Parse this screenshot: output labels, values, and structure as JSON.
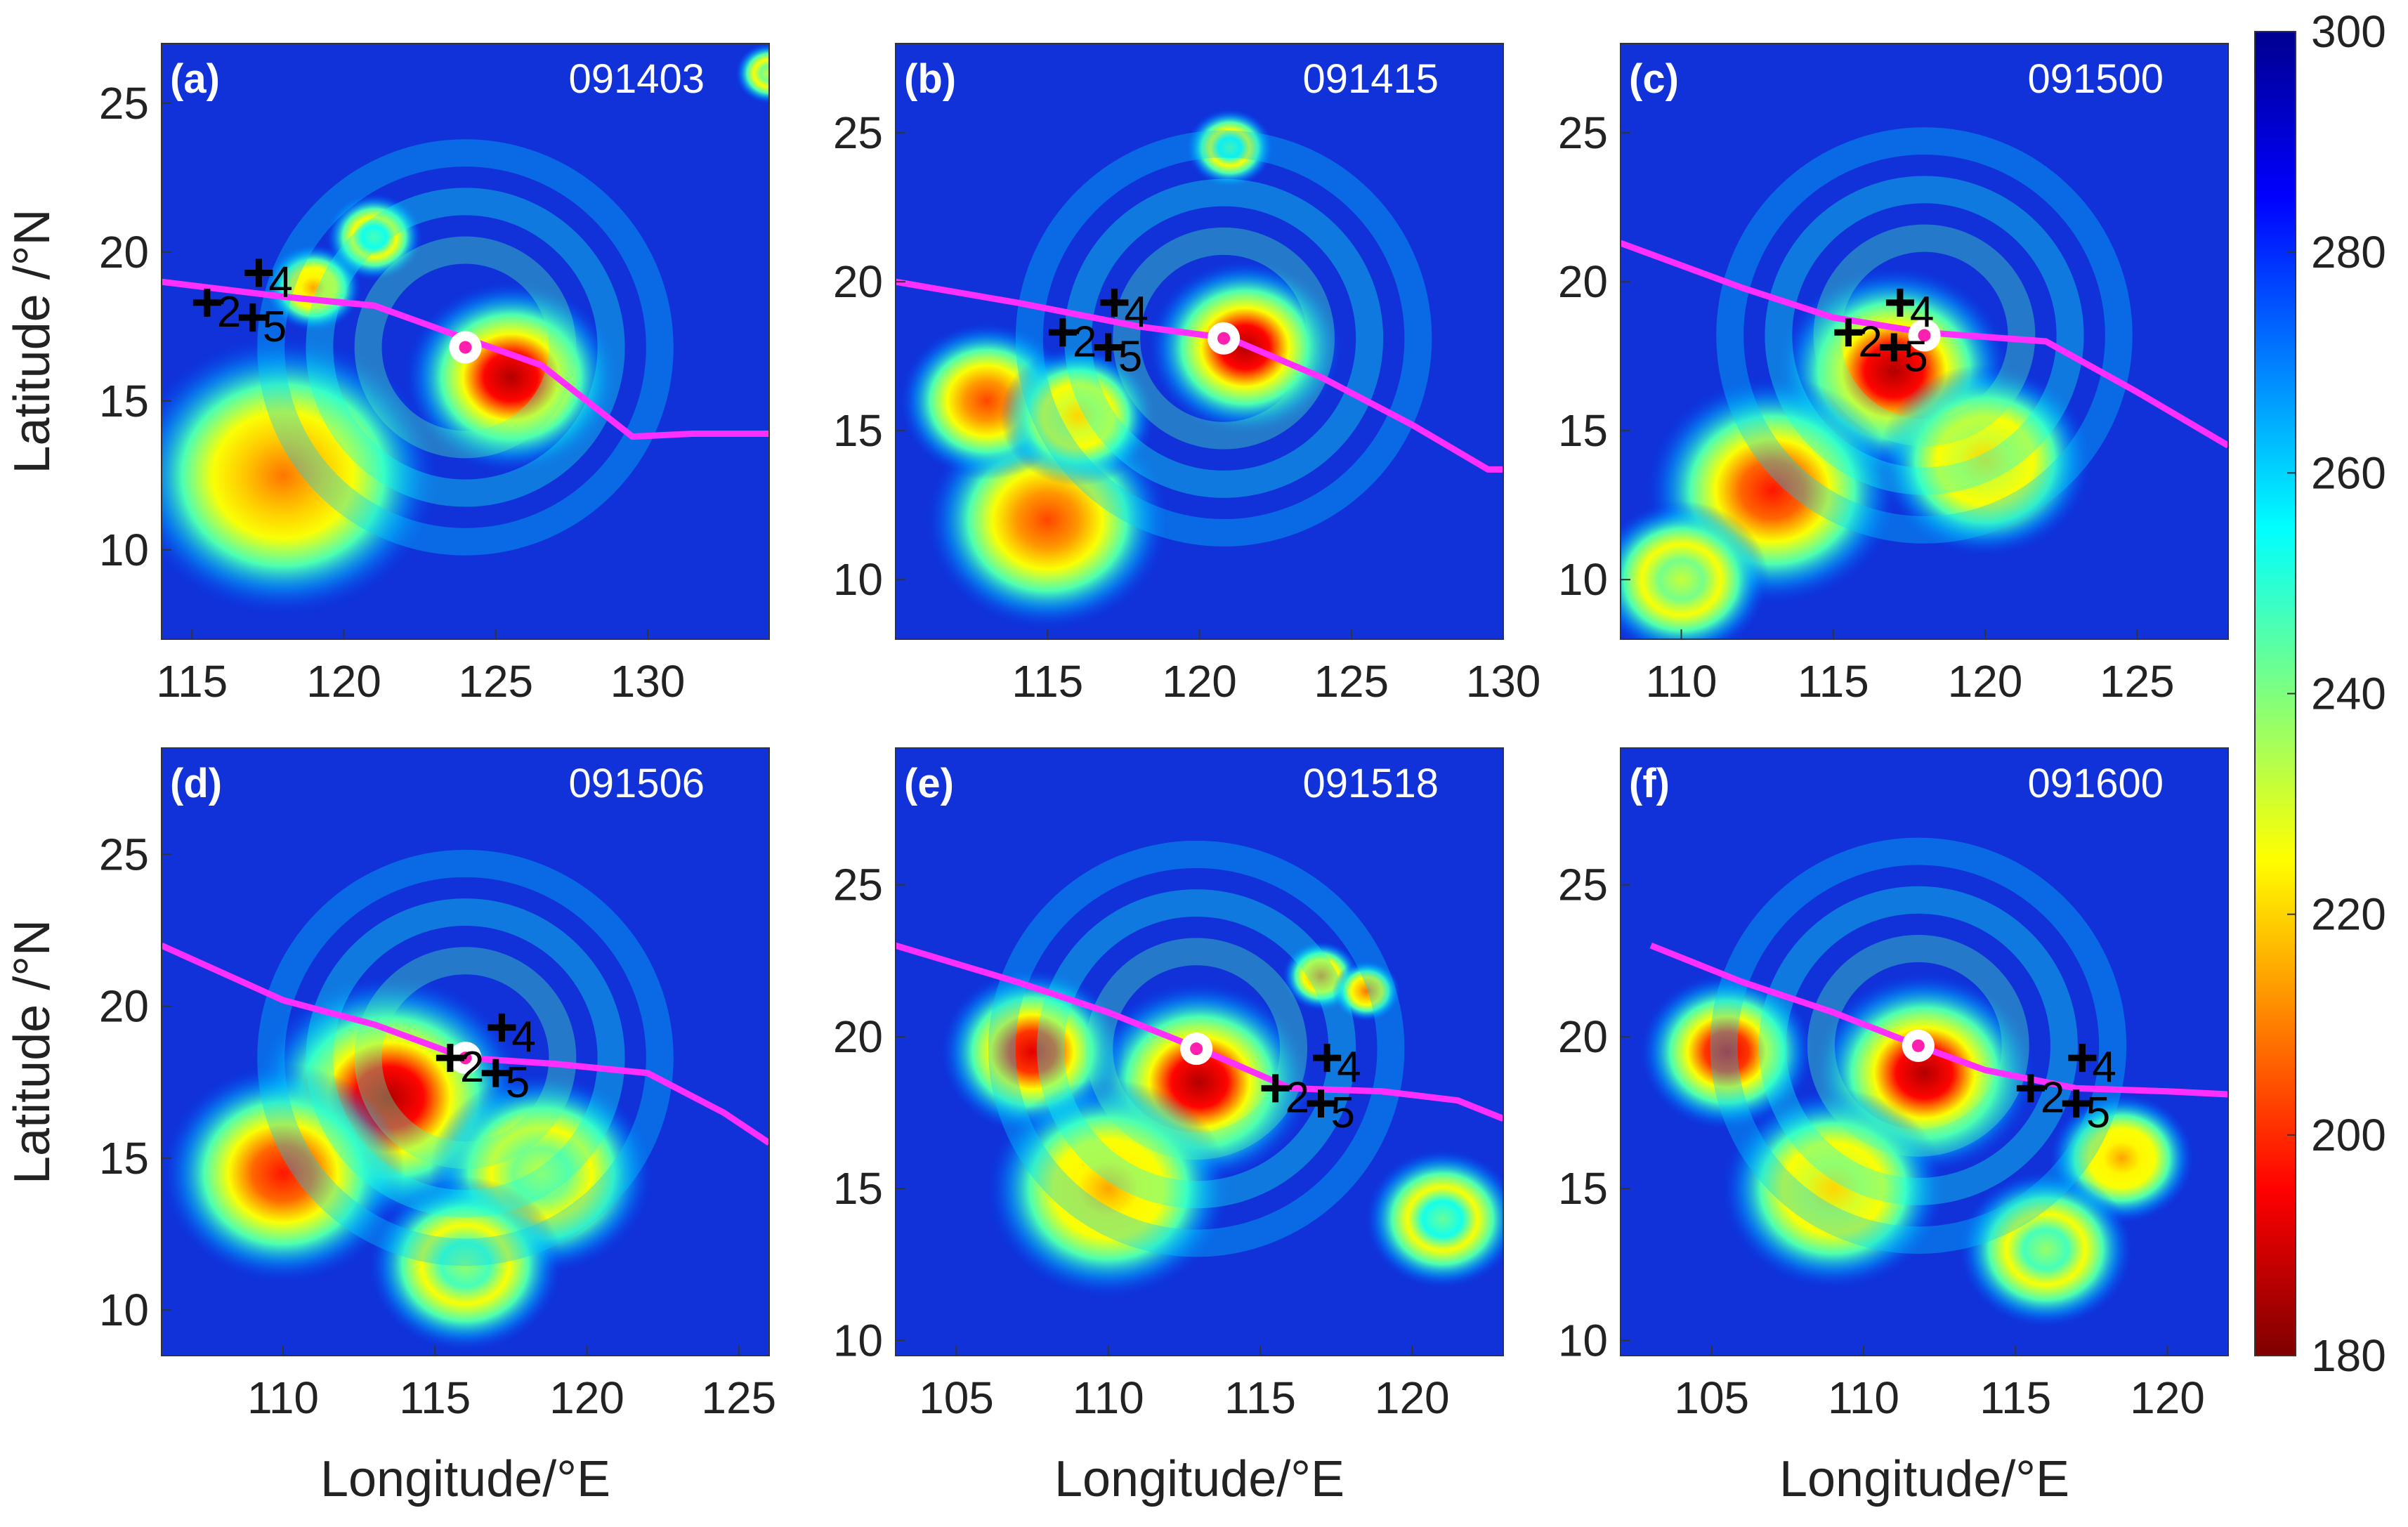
{
  "chart_data": [
    {
      "type": "heatmap",
      "panel_label": "(a)",
      "time_label": "091403",
      "xlabel": "",
      "ylabel": "Latitude /°N",
      "xlim": [
        114,
        134
      ],
      "ylim": [
        7,
        27
      ],
      "xticks": [
        115,
        120,
        125,
        130
      ],
      "yticks": [
        10,
        15,
        20,
        25
      ],
      "track": {
        "name": "",
        "x": [
          114,
          118,
          121,
          124,
          126.5,
          129.5,
          131.5,
          134
        ],
        "y": [
          19,
          18.5,
          18.2,
          17.1,
          16.2,
          13.8,
          13.9,
          13.9
        ]
      },
      "center": {
        "x": 124,
        "y": 16.8
      },
      "stations": [
        {
          "label": "2",
          "x": 115.5,
          "y": 18.3
        },
        {
          "label": "4",
          "x": 117.2,
          "y": 19.3
        },
        {
          "label": "5",
          "x": 117.0,
          "y": 17.8
        }
      ],
      "cold_cores": [
        {
          "x": 125.5,
          "y": 15.8,
          "intensity": 1.0,
          "spread": 2.2
        },
        {
          "x": 118,
          "y": 12.5,
          "intensity": 0.8,
          "spread": 3.2
        },
        {
          "x": 119,
          "y": 18.8,
          "intensity": 0.75,
          "spread": 1.0
        },
        {
          "x": 121,
          "y": 20.5,
          "intensity": 0.5,
          "spread": 1.0
        },
        {
          "x": 134,
          "y": 26,
          "intensity": 0.6,
          "spread": 0.7
        }
      ]
    },
    {
      "type": "heatmap",
      "panel_label": "(b)",
      "time_label": "091415",
      "xlabel": "",
      "ylabel": "",
      "xlim": [
        110,
        130
      ],
      "ylim": [
        8,
        28
      ],
      "xticks": [
        115,
        120,
        125,
        130
      ],
      "yticks": [
        10,
        15,
        20,
        25
      ],
      "track": {
        "name": "",
        "x": [
          110,
          114,
          118,
          121,
          124,
          127,
          129.5,
          130
        ],
        "y": [
          20,
          19.3,
          18.5,
          18.1,
          16.8,
          15.2,
          13.7,
          13.7
        ]
      },
      "center": {
        "x": 120.8,
        "y": 18.1
      },
      "stations": [
        {
          "label": "2",
          "x": 115.5,
          "y": 18.3
        },
        {
          "label": "4",
          "x": 117.2,
          "y": 19.3
        },
        {
          "label": "5",
          "x": 117.0,
          "y": 17.8
        }
      ],
      "cold_cores": [
        {
          "x": 121.5,
          "y": 17.8,
          "intensity": 1.0,
          "spread": 2.0
        },
        {
          "x": 115,
          "y": 12,
          "intensity": 0.85,
          "spread": 2.5
        },
        {
          "x": 113,
          "y": 16,
          "intensity": 0.85,
          "spread": 1.8
        },
        {
          "x": 116,
          "y": 15.5,
          "intensity": 0.7,
          "spread": 1.6
        },
        {
          "x": 121,
          "y": 24.5,
          "intensity": 0.5,
          "spread": 0.9
        }
      ]
    },
    {
      "type": "heatmap",
      "panel_label": "(c)",
      "time_label": "091500",
      "xlabel": "",
      "ylabel": "",
      "xlim": [
        108,
        128
      ],
      "ylim": [
        8,
        28
      ],
      "xticks": [
        110,
        115,
        120,
        125
      ],
      "yticks": [
        10,
        15,
        20,
        25
      ],
      "track": {
        "name": "",
        "x": [
          108,
          112,
          115,
          118,
          122,
          125,
          128
        ],
        "y": [
          21.3,
          19.8,
          18.8,
          18.3,
          18.0,
          16.3,
          14.5
        ]
      },
      "center": {
        "x": 118.0,
        "y": 18.2
      },
      "stations": [
        {
          "label": "2",
          "x": 115.5,
          "y": 18.3
        },
        {
          "label": "4",
          "x": 117.2,
          "y": 19.3
        },
        {
          "label": "5",
          "x": 117.0,
          "y": 17.8
        }
      ],
      "cold_cores": [
        {
          "x": 117,
          "y": 17,
          "intensity": 1.0,
          "spread": 2.4
        },
        {
          "x": 113,
          "y": 13,
          "intensity": 0.9,
          "spread": 2.6
        },
        {
          "x": 120,
          "y": 14,
          "intensity": 0.7,
          "spread": 2.2
        },
        {
          "x": 110,
          "y": 10,
          "intensity": 0.6,
          "spread": 1.8
        }
      ]
    },
    {
      "type": "heatmap",
      "panel_label": "(d)",
      "time_label": "091506",
      "xlabel": "Longitude/°E",
      "ylabel": "Latitude /°N",
      "xlim": [
        106,
        126
      ],
      "ylim": [
        8.5,
        28.5
      ],
      "xticks": [
        110,
        115,
        120,
        125
      ],
      "yticks": [
        10,
        15,
        20,
        25
      ],
      "track": {
        "name": "",
        "x": [
          106,
          110,
          113,
          116,
          119,
          122,
          124.5,
          126
        ],
        "y": [
          22,
          20.2,
          19.4,
          18.3,
          18.1,
          17.8,
          16.5,
          15.5
        ]
      },
      "center": {
        "x": 116.0,
        "y": 18.3
      },
      "stations": [
        {
          "label": "2",
          "x": 115.5,
          "y": 18.3
        },
        {
          "label": "4",
          "x": 117.2,
          "y": 19.3
        },
        {
          "label": "5",
          "x": 117.0,
          "y": 17.8
        }
      ],
      "cold_cores": [
        {
          "x": 113.5,
          "y": 17,
          "intensity": 1.0,
          "spread": 2.8
        },
        {
          "x": 110,
          "y": 14.5,
          "intensity": 0.9,
          "spread": 2.5
        },
        {
          "x": 118.5,
          "y": 14.5,
          "intensity": 0.6,
          "spread": 2.3
        },
        {
          "x": 116,
          "y": 11.5,
          "intensity": 0.55,
          "spread": 2.0
        }
      ]
    },
    {
      "type": "heatmap",
      "panel_label": "(e)",
      "time_label": "091518",
      "xlabel": "Longitude/°E",
      "ylabel": "",
      "xlim": [
        103,
        123
      ],
      "ylim": [
        9.5,
        29.5
      ],
      "xticks": [
        105,
        110,
        115,
        120
      ],
      "yticks": [
        10,
        15,
        20,
        25
      ],
      "track": {
        "name": "",
        "x": [
          103,
          107,
          110,
          113,
          116,
          119,
          121.5,
          123
        ],
        "y": [
          23,
          21.8,
          20.8,
          19.6,
          18.3,
          18.2,
          17.9,
          17.3
        ]
      },
      "center": {
        "x": 112.9,
        "y": 19.6
      },
      "stations": [
        {
          "label": "2",
          "x": 115.5,
          "y": 18.3
        },
        {
          "label": "4",
          "x": 117.2,
          "y": 19.3
        },
        {
          "label": "5",
          "x": 117.0,
          "y": 17.8
        }
      ],
      "cold_cores": [
        {
          "x": 113,
          "y": 18.5,
          "intensity": 1.0,
          "spread": 2.3
        },
        {
          "x": 107.5,
          "y": 19.5,
          "intensity": 0.95,
          "spread": 1.9
        },
        {
          "x": 117,
          "y": 22,
          "intensity": 0.8,
          "spread": 0.8
        },
        {
          "x": 110,
          "y": 15,
          "intensity": 0.75,
          "spread": 2.5
        },
        {
          "x": 118.5,
          "y": 21.5,
          "intensity": 0.8,
          "spread": 0.7
        },
        {
          "x": 121,
          "y": 14,
          "intensity": 0.5,
          "spread": 1.6
        }
      ]
    },
    {
      "type": "heatmap",
      "panel_label": "(f)",
      "time_label": "091600",
      "xlabel": "Longitude/°E",
      "ylabel": "",
      "xlim": [
        102,
        122
      ],
      "ylim": [
        9.5,
        29.5
      ],
      "xticks": [
        105,
        110,
        115,
        120
      ],
      "yticks": [
        10,
        15,
        20,
        25
      ],
      "track": {
        "name": "",
        "x": [
          103,
          106,
          109,
          111.8,
          114,
          117,
          120,
          122
        ],
        "y": [
          23,
          21.8,
          20.8,
          19.7,
          18.9,
          18.3,
          18.2,
          18.1
        ]
      },
      "center": {
        "x": 111.8,
        "y": 19.7
      },
      "stations": [
        {
          "label": "2",
          "x": 115.5,
          "y": 18.3
        },
        {
          "label": "4",
          "x": 117.2,
          "y": 19.3
        },
        {
          "label": "5",
          "x": 117.0,
          "y": 17.8
        }
      ],
      "cold_cores": [
        {
          "x": 112,
          "y": 18.8,
          "intensity": 1.0,
          "spread": 2.3
        },
        {
          "x": 105.5,
          "y": 19.5,
          "intensity": 0.95,
          "spread": 1.8
        },
        {
          "x": 109,
          "y": 15,
          "intensity": 0.7,
          "spread": 2.3
        },
        {
          "x": 118.5,
          "y": 16,
          "intensity": 0.75,
          "spread": 1.5
        },
        {
          "x": 116,
          "y": 13,
          "intensity": 0.55,
          "spread": 1.8
        }
      ]
    }
  ],
  "colorbar": {
    "min": 180,
    "max": 300,
    "ticks": [
      180,
      200,
      220,
      240,
      260,
      280,
      300
    ],
    "colormap": "jet",
    "colormap_stops": [
      "#7f0000",
      "#ff0000",
      "#ff7f00",
      "#ffff00",
      "#7fff7f",
      "#00ffff",
      "#007fff",
      "#0000ff",
      "#00008f"
    ]
  },
  "colors": {
    "track": "#ff30ff",
    "center_ring": "#ffffff",
    "center_dot": "#ff20b0",
    "station_marker": "#000000",
    "label_text": "#ffffff",
    "coastline": "#a0a0a0",
    "cold_ocean": "#1032d8",
    "background": "#ffffff"
  }
}
